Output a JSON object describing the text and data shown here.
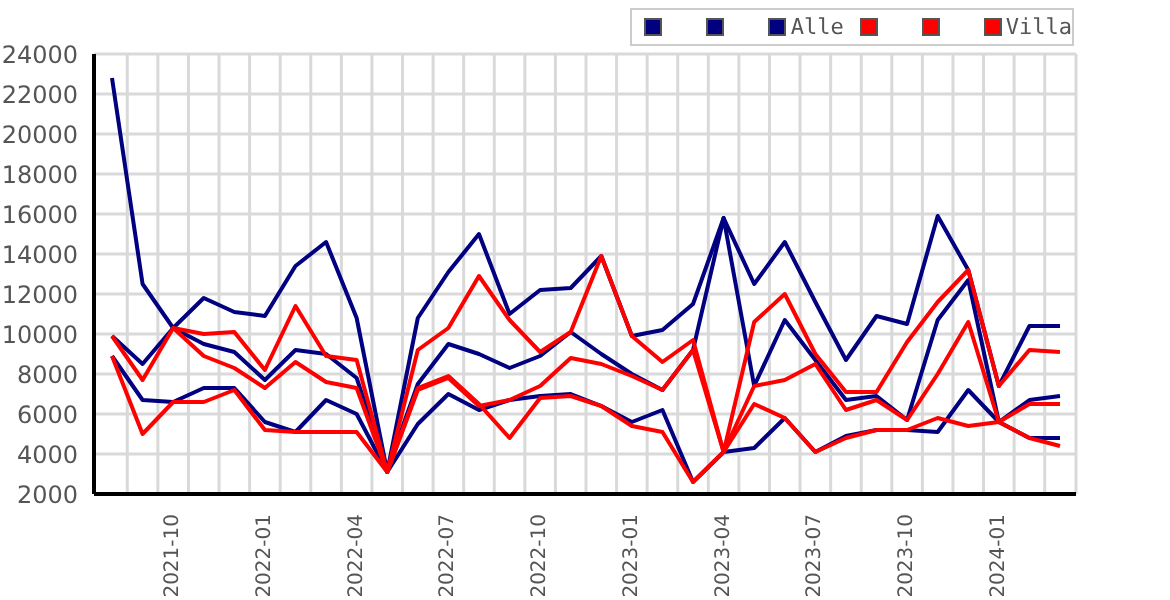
{
  "chart_data": {
    "type": "line",
    "categories": [
      null,
      null,
      "2021-10",
      null,
      null,
      "2022-01",
      null,
      null,
      "2022-04",
      null,
      null,
      "2022-07",
      null,
      null,
      "2022-10",
      null,
      null,
      "2023-01",
      null,
      null,
      "2023-04",
      null,
      null,
      "2023-07",
      null,
      null,
      "2023-10",
      null,
      null,
      "2024-01",
      null,
      null
    ],
    "series": [
      {
        "color": "#000080",
        "values": [
          22800,
          12500,
          10300,
          11800,
          11100,
          10900,
          13400,
          14600,
          10800,
          3100,
          10800,
          13100,
          15000,
          11000,
          12200,
          12300,
          13900,
          9900,
          10200,
          11500,
          15800,
          12500,
          14600,
          11600,
          8700,
          10900,
          10500,
          15900,
          13200,
          7400,
          10400,
          10400
        ]
      },
      {
        "color": "#000080",
        "values": [
          9900,
          8500,
          10300,
          9500,
          9100,
          7700,
          9200,
          9000,
          7800,
          3200,
          7500,
          9500,
          9000,
          8300,
          8900,
          10100,
          9000,
          8000,
          7200,
          9200,
          15800,
          7400,
          10700,
          8700,
          6700,
          6900,
          5700,
          10700,
          12700,
          5600,
          6700,
          6900
        ]
      },
      {
        "name": "Alle",
        "color": "#000080",
        "values": [
          8900,
          6700,
          6600,
          7300,
          7300,
          5600,
          5100,
          6700,
          6000,
          3100,
          5500,
          7000,
          6200,
          6700,
          6900,
          7000,
          6400,
          5600,
          6200,
          2600,
          4100,
          4300,
          5800,
          4100,
          4900,
          5200,
          5200,
          5100,
          7200,
          5600,
          4800,
          4800
        ]
      },
      {
        "color": "#ff0000",
        "values": [
          9900,
          7700,
          10300,
          10000,
          10100,
          8200,
          11400,
          8900,
          8700,
          3100,
          9200,
          10300,
          12900,
          10700,
          9100,
          10100,
          13900,
          9900,
          8600,
          9700,
          4100,
          10600,
          12000,
          9000,
          7100,
          7100,
          9600,
          11600,
          13200,
          7400,
          9200,
          9100
        ]
      },
      {
        "color": "#ff0000",
        "values": [
          8900,
          5000,
          6600,
          6600,
          7200,
          5200,
          5100,
          5100,
          5100,
          3100,
          7300,
          7900,
          6500,
          4800,
          6800,
          6900,
          6400,
          5400,
          5100,
          2600,
          4100,
          6500,
          5800,
          4100,
          4800,
          5200,
          5200,
          5800,
          5400,
          5600,
          4800,
          4400
        ]
      },
      {
        "name": "Villa",
        "color": "#ff0000",
        "values": [
          null,
          null,
          10300,
          8900,
          8300,
          7300,
          8600,
          7600,
          7300,
          3100,
          7200,
          7800,
          6400,
          6700,
          7400,
          8800,
          8500,
          7900,
          7200,
          9200,
          4100,
          7400,
          7700,
          8500,
          6200,
          6700,
          5700,
          8000,
          10600,
          5600,
          6500,
          6500
        ]
      }
    ],
    "ylim": [
      2000,
      24000
    ],
    "yticks": [
      2000,
      4000,
      6000,
      8000,
      10000,
      12000,
      14000,
      16000,
      18000,
      20000,
      22000,
      24000
    ],
    "grid": true,
    "legend": "top right"
  }
}
